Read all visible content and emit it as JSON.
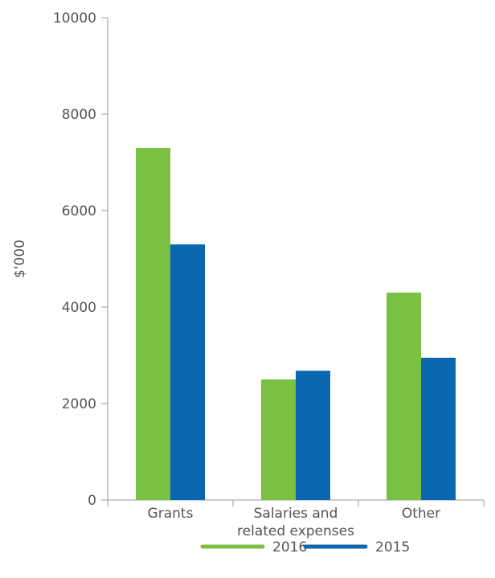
{
  "chart_data": {
    "type": "bar",
    "title": "",
    "xlabel": "",
    "ylabel": "$'000",
    "ylim": [
      0,
      10000
    ],
    "yticks": [
      0,
      2000,
      4000,
      6000,
      8000,
      10000
    ],
    "grid": false,
    "legend_position": "bottom",
    "categories": [
      [
        "Grants"
      ],
      [
        "Salaries and",
        "related expenses"
      ],
      [
        "Other"
      ]
    ],
    "series": [
      {
        "name": "2016",
        "color": "#7ac143",
        "values": [
          7300,
          2500,
          4300
        ]
      },
      {
        "name": "2015",
        "color": "#0a67b0",
        "values": [
          5300,
          2680,
          2950
        ]
      }
    ]
  }
}
